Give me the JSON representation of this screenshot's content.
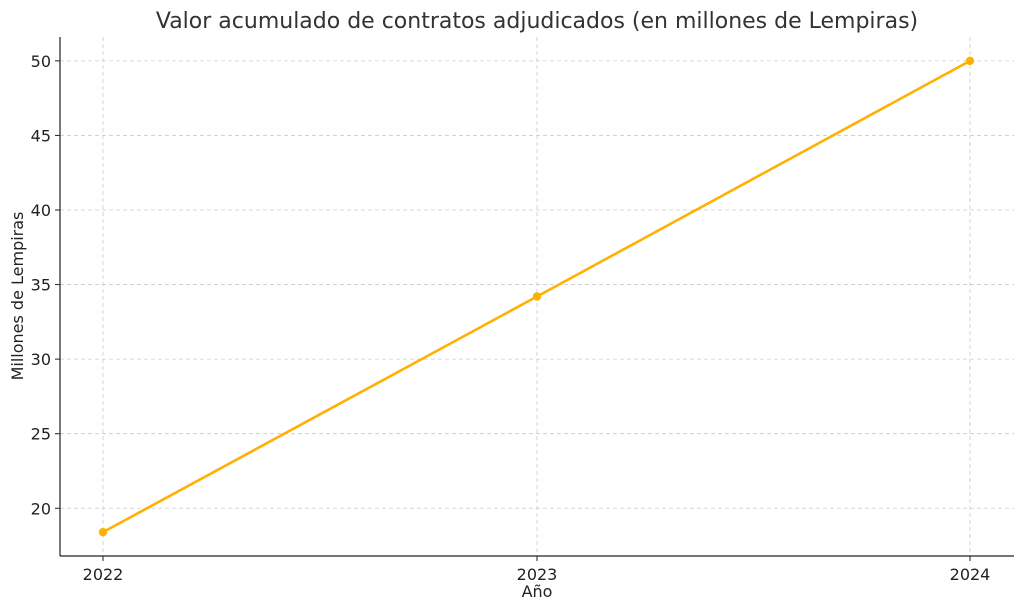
{
  "chart_data": {
    "type": "line",
    "title": "Valor acumulado de contratos adjudicados (en millones de Lempiras)",
    "xlabel": "Año",
    "ylabel": "Millones de Lempiras",
    "x": [
      "2022",
      "2023",
      "2024"
    ],
    "series": [
      {
        "values": [
          18.4,
          34.2,
          50.0
        ],
        "color": "#FFB000",
        "marker": "circle"
      }
    ],
    "yticks": [
      20,
      25,
      30,
      35,
      40,
      45,
      50
    ],
    "ylim": [
      16.8,
      51.6
    ],
    "grid": true
  }
}
